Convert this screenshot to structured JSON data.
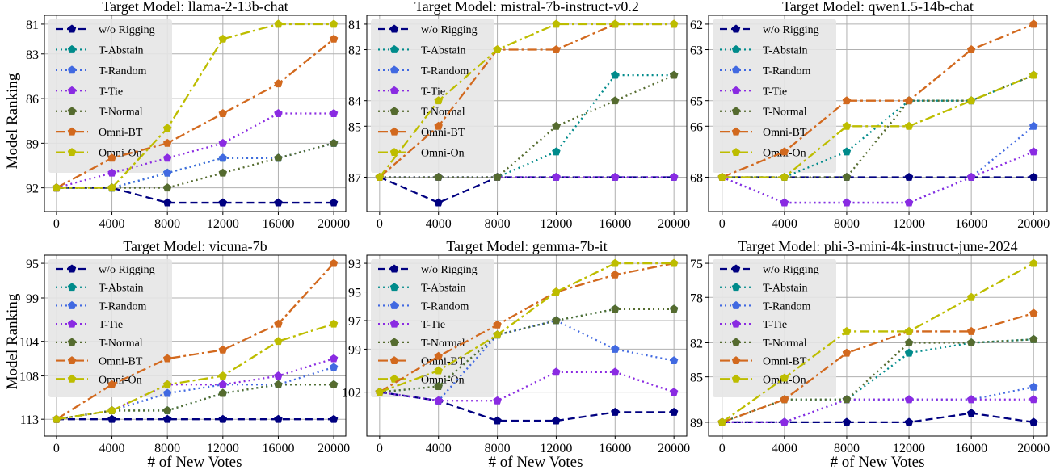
{
  "figure": {
    "xlabel": "# of New Votes",
    "ylabel": "Model Ranking"
  },
  "series_styles": [
    {
      "name": "w/o Rigging",
      "color": "#000080",
      "dash": "9,5"
    },
    {
      "name": "T-Abstain",
      "color": "#008b8b",
      "dash": "2,4"
    },
    {
      "name": "T-Random",
      "color": "#4169e1",
      "dash": "2,4"
    },
    {
      "name": "T-Tie",
      "color": "#8a2be2",
      "dash": "2,4"
    },
    {
      "name": "T-Normal",
      "color": "#556b2f",
      "dash": "2,4"
    },
    {
      "name": "Omni-BT",
      "color": "#d2691e",
      "dash": "12,4,3,4"
    },
    {
      "name": "Omni-On",
      "color": "#bdbd00",
      "dash": "12,4,3,4"
    }
  ],
  "chart_data": [
    {
      "type": "line",
      "title": "Target Model: llama-2-13b-chat",
      "x": [
        0,
        4000,
        8000,
        12000,
        16000,
        20000
      ],
      "xticks": [
        "0",
        "4000",
        "8000",
        "12000",
        "16000",
        "20000"
      ],
      "yticks": [
        81,
        83,
        86,
        89,
        92
      ],
      "ylim": [
        93,
        81
      ],
      "y_inverted": true,
      "grid": true,
      "legend": "top-left",
      "series": [
        {
          "name": "w/o Rigging",
          "values": [
            92,
            92,
            93,
            93,
            93,
            93
          ]
        },
        {
          "name": "T-Abstain",
          "values": [
            92,
            92,
            91,
            90,
            90,
            89
          ]
        },
        {
          "name": "T-Random",
          "values": [
            92,
            92,
            91,
            90,
            90,
            89
          ]
        },
        {
          "name": "T-Tie",
          "values": [
            92,
            91,
            90,
            89,
            87,
            87
          ]
        },
        {
          "name": "T-Normal",
          "values": [
            92,
            92,
            92,
            91,
            90,
            89
          ]
        },
        {
          "name": "Omni-BT",
          "values": [
            92,
            90,
            89,
            87,
            85,
            82
          ]
        },
        {
          "name": "Omni-On",
          "values": [
            92,
            92,
            88,
            82,
            81,
            81
          ]
        }
      ]
    },
    {
      "type": "line",
      "title": "Target Model: mistral-7b-instruct-v0.2",
      "x": [
        0,
        4000,
        8000,
        12000,
        16000,
        20000
      ],
      "xticks": [
        "0",
        "4000",
        "8000",
        "12000",
        "16000",
        "20000"
      ],
      "yticks": [
        81,
        82,
        84,
        85,
        87
      ],
      "ylim": [
        88,
        81
      ],
      "y_inverted": true,
      "grid": true,
      "legend": "top-left",
      "series": [
        {
          "name": "w/o Rigging",
          "values": [
            87,
            88,
            87,
            87,
            87,
            87
          ]
        },
        {
          "name": "T-Abstain",
          "values": [
            87,
            87,
            87,
            86,
            83,
            83
          ]
        },
        {
          "name": "T-Random",
          "values": [
            87,
            87,
            87,
            87,
            87,
            87
          ]
        },
        {
          "name": "T-Tie",
          "values": [
            87,
            87,
            87,
            87,
            87,
            87
          ]
        },
        {
          "name": "T-Normal",
          "values": [
            87,
            87,
            87,
            85,
            84,
            83
          ]
        },
        {
          "name": "Omni-BT",
          "values": [
            87,
            85,
            82,
            82,
            81,
            81
          ]
        },
        {
          "name": "Omni-On",
          "values": [
            87,
            84,
            82,
            81,
            81,
            81
          ]
        }
      ]
    },
    {
      "type": "line",
      "title": "Target Model: qwen1.5-14b-chat",
      "x": [
        0,
        4000,
        8000,
        12000,
        16000,
        20000
      ],
      "xticks": [
        "0",
        "4000",
        "8000",
        "12000",
        "16000",
        "20000"
      ],
      "yticks": [
        62,
        63,
        65,
        66,
        68
      ],
      "ylim": [
        69,
        62
      ],
      "y_inverted": true,
      "grid": true,
      "legend": "top-left",
      "series": [
        {
          "name": "w/o Rigging",
          "values": [
            68,
            68,
            68,
            68,
            68,
            68
          ]
        },
        {
          "name": "T-Abstain",
          "values": [
            68,
            68,
            67,
            65,
            65,
            64
          ]
        },
        {
          "name": "T-Random",
          "values": [
            68,
            69,
            69,
            69,
            68,
            66
          ]
        },
        {
          "name": "T-Tie",
          "values": [
            68,
            69,
            69,
            69,
            68,
            67
          ]
        },
        {
          "name": "T-Normal",
          "values": [
            68,
            68,
            68,
            65,
            65,
            64
          ]
        },
        {
          "name": "Omni-BT",
          "values": [
            68,
            67,
            65,
            65,
            63,
            62
          ]
        },
        {
          "name": "Omni-On",
          "values": [
            68,
            68,
            66,
            66,
            65,
            64
          ]
        }
      ]
    },
    {
      "type": "line",
      "title": "Target Model: vicuna-7b",
      "x": [
        0,
        4000,
        8000,
        12000,
        16000,
        20000
      ],
      "xticks": [
        "0",
        "4000",
        "8000",
        "12000",
        "16000",
        "20000"
      ],
      "yticks": [
        95,
        99,
        104,
        108,
        113
      ],
      "ylim": [
        114,
        95
      ],
      "y_inverted": true,
      "grid": true,
      "legend": "top-left",
      "series": [
        {
          "name": "w/o Rigging",
          "values": [
            113,
            113,
            113,
            113,
            113,
            113
          ]
        },
        {
          "name": "T-Abstain",
          "values": [
            113,
            112,
            112,
            110,
            109,
            109
          ]
        },
        {
          "name": "T-Random",
          "values": [
            113,
            112,
            110,
            109,
            109,
            107
          ]
        },
        {
          "name": "T-Tie",
          "values": [
            113,
            112,
            109,
            109,
            108,
            106
          ]
        },
        {
          "name": "T-Normal",
          "values": [
            113,
            112,
            112,
            110,
            109,
            109
          ]
        },
        {
          "name": "Omni-BT",
          "values": [
            113,
            109,
            106,
            105,
            102,
            95
          ]
        },
        {
          "name": "Omni-On",
          "values": [
            113,
            112,
            109,
            108,
            104,
            102
          ]
        }
      ]
    },
    {
      "type": "line",
      "title": "Target Model: gemma-7b-it",
      "x": [
        0,
        4000,
        8000,
        12000,
        16000,
        20000
      ],
      "xticks": [
        "0",
        "4000",
        "8000",
        "12000",
        "16000",
        "20000"
      ],
      "yticks": [
        93,
        95,
        97,
        99,
        102
      ],
      "ylim": [
        104.5,
        93
      ],
      "y_inverted": true,
      "grid": true,
      "legend": "top-left",
      "series": [
        {
          "name": "w/o Rigging",
          "values": [
            102,
            102.6,
            104,
            104,
            103.4,
            103.4
          ]
        },
        {
          "name": "T-Abstain",
          "values": [
            102,
            101.6,
            98,
            97,
            96.2,
            96.2
          ]
        },
        {
          "name": "T-Random",
          "values": [
            102,
            102.6,
            98,
            97,
            99,
            99.8
          ]
        },
        {
          "name": "T-Tie",
          "values": [
            102,
            102.6,
            102.6,
            100.6,
            100.6,
            102
          ]
        },
        {
          "name": "T-Normal",
          "values": [
            102,
            101.6,
            98,
            97,
            96.2,
            96.2
          ]
        },
        {
          "name": "Omni-BT",
          "values": [
            102,
            99.5,
            97.3,
            95,
            93.8,
            93
          ]
        },
        {
          "name": "Omni-On",
          "values": [
            102,
            100.5,
            98,
            95,
            93,
            93
          ]
        }
      ]
    },
    {
      "type": "line",
      "title": "Target Model: phi-3-mini-4k-instruct-june-2024",
      "x": [
        0,
        4000,
        8000,
        12000,
        16000,
        20000
      ],
      "xticks": [
        "0",
        "4000",
        "8000",
        "12000",
        "16000",
        "20000"
      ],
      "yticks": [
        75,
        78,
        82,
        85,
        89
      ],
      "ylim": [
        89.5,
        75
      ],
      "y_inverted": true,
      "grid": true,
      "legend": "top-left",
      "series": [
        {
          "name": "w/o Rigging",
          "values": [
            89,
            89,
            89,
            89,
            88.2,
            89
          ]
        },
        {
          "name": "T-Abstain",
          "values": [
            89,
            87,
            87,
            82.9,
            82,
            81.7
          ]
        },
        {
          "name": "T-Random",
          "values": [
            89,
            89,
            87,
            87,
            87,
            85.9
          ]
        },
        {
          "name": "T-Tie",
          "values": [
            89,
            89,
            87,
            87,
            87,
            87
          ]
        },
        {
          "name": "T-Normal",
          "values": [
            89,
            87,
            87,
            82,
            82,
            81.7
          ]
        },
        {
          "name": "Omni-BT",
          "values": [
            89,
            87,
            82.9,
            81,
            81,
            79.4
          ]
        },
        {
          "name": "Omni-On",
          "values": [
            89,
            85.1,
            81,
            81,
            78,
            75
          ]
        }
      ]
    }
  ]
}
